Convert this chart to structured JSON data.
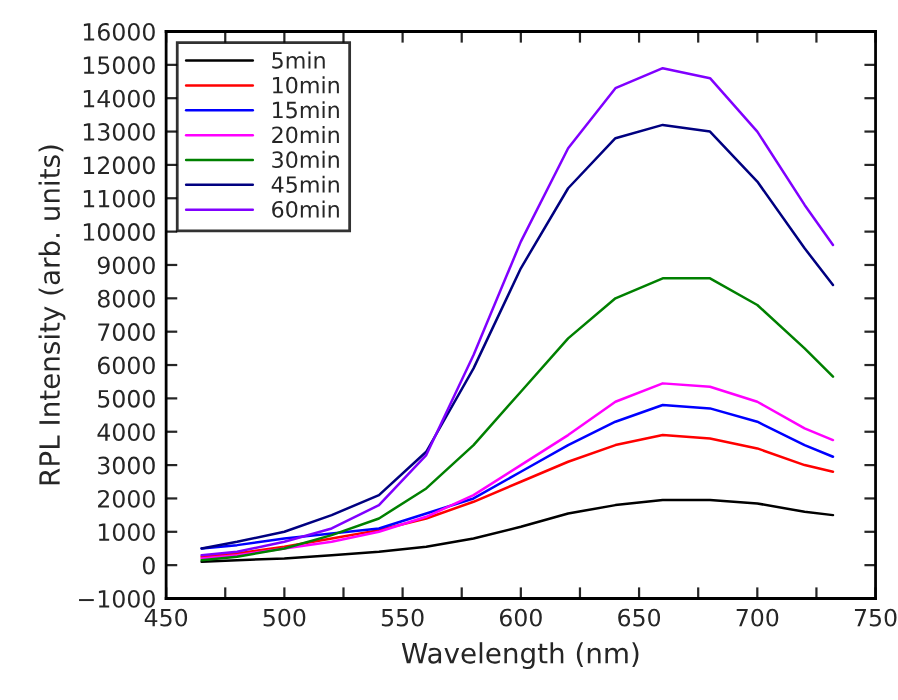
{
  "chart_data": {
    "type": "line",
    "xlabel": "Wavelength (nm)",
    "ylabel": "RPL Intensity (arb. units)",
    "x": [
      465,
      480,
      500,
      520,
      540,
      560,
      580,
      600,
      620,
      640,
      660,
      680,
      700,
      720,
      732
    ],
    "series": [
      {
        "name": "5min",
        "color": "#000000",
        "values": [
          100,
          150,
          200,
          300,
          400,
          550,
          800,
          1150,
          1550,
          1800,
          1950,
          1950,
          1850,
          1600,
          1500
        ]
      },
      {
        "name": "10min",
        "color": "#ff0000",
        "values": [
          250,
          350,
          550,
          800,
          1050,
          1400,
          1900,
          2500,
          3100,
          3600,
          3900,
          3800,
          3500,
          3000,
          2800
        ]
      },
      {
        "name": "15min",
        "color": "#0000ff",
        "values": [
          500,
          600,
          800,
          950,
          1100,
          1550,
          2000,
          2800,
          3600,
          4300,
          4800,
          4700,
          4300,
          3600,
          3250
        ]
      },
      {
        "name": "20min",
        "color": "#ff00ff",
        "values": [
          200,
          300,
          500,
          700,
          1000,
          1450,
          2100,
          3000,
          3900,
          4900,
          5450,
          5350,
          4900,
          4100,
          3750
        ]
      },
      {
        "name": "30min",
        "color": "#008000",
        "values": [
          150,
          250,
          500,
          900,
          1400,
          2300,
          3600,
          5200,
          6800,
          8000,
          8600,
          8600,
          7800,
          6500,
          5650
        ]
      },
      {
        "name": "45min",
        "color": "#000080",
        "values": [
          500,
          700,
          1000,
          1500,
          2100,
          3400,
          5900,
          8900,
          11300,
          12800,
          13200,
          13000,
          11500,
          9500,
          8400
        ]
      },
      {
        "name": "60min",
        "color": "#8000ff",
        "values": [
          300,
          400,
          700,
          1100,
          1800,
          3300,
          6300,
          9700,
          12500,
          14300,
          14900,
          14600,
          13000,
          10800,
          9600
        ]
      }
    ],
    "xlim": [
      450,
      750
    ],
    "xticks": [
      450,
      {
        "value": 475,
        "label": null
      },
      500,
      {
        "value": 525,
        "label": null
      },
      550,
      {
        "value": 575,
        "label": null
      },
      600,
      {
        "value": 625,
        "label": null
      },
      650,
      {
        "value": 675,
        "label": null
      },
      700,
      {
        "value": 725,
        "label": null
      },
      750
    ],
    "ylim": [
      -1000,
      16000
    ],
    "yticks": [
      {
        "value": -1000,
        "label": "−1000"
      },
      0,
      1000,
      2000,
      3000,
      4000,
      5000,
      6000,
      7000,
      8000,
      9000,
      10000,
      11000,
      12000,
      13000,
      14000,
      15000,
      16000
    ],
    "legend": "top left",
    "grid": false,
    "line_style": "solid"
  }
}
